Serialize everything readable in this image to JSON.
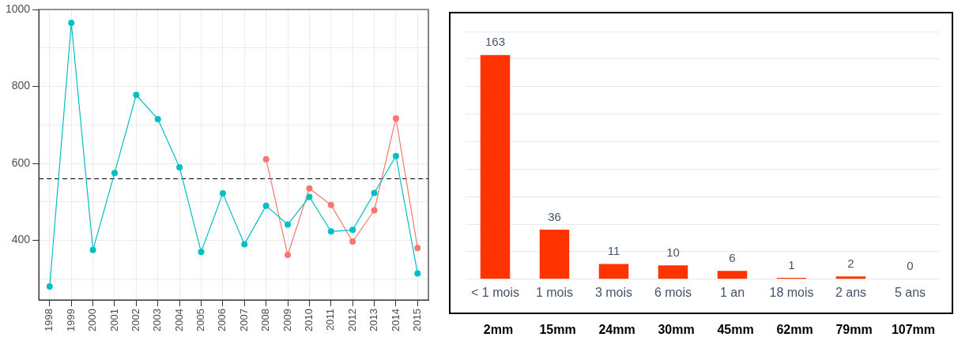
{
  "chart_data": [
    {
      "type": "line",
      "categories": [
        "1998",
        "1999",
        "2000",
        "2001",
        "2002",
        "2003",
        "2004",
        "2005",
        "2006",
        "2007",
        "2008",
        "2009",
        "2010",
        "2011",
        "2012",
        "2013",
        "2014",
        "2015"
      ],
      "series": [
        {
          "color": "#00bfc4",
          "values": [
            280,
            965,
            375,
            575,
            778,
            715,
            590,
            370,
            522,
            390,
            490,
            441,
            513,
            423,
            427,
            523,
            619,
            314
          ]
        },
        {
          "color": "#f8766d",
          "values": [
            null,
            null,
            null,
            null,
            null,
            null,
            null,
            null,
            null,
            null,
            611,
            362,
            535,
            492,
            397,
            478,
            717,
            380
          ]
        }
      ],
      "ylim": [
        245,
        1000
      ],
      "yticks": [
        {
          "value": 300,
          "label": null
        },
        400,
        {
          "value": 500,
          "label": null
        },
        600,
        {
          "value": 700,
          "label": null
        },
        800,
        {
          "value": 900,
          "label": null
        },
        1000
      ],
      "grid": true,
      "marker": "circle",
      "line_style": "solid",
      "legend": false,
      "ref_lines": [
        {
          "axis": "y",
          "value": 560,
          "line_style": "dashed",
          "color": "#000000"
        }
      ]
    },
    {
      "type": "bar",
      "categories": [
        "< 1 mois",
        "1 mois",
        "3 mois",
        "6 mois",
        "1 an",
        "18 mois",
        "2 ans",
        "5 ans"
      ],
      "values": [
        163,
        36,
        11,
        10,
        6,
        1,
        2,
        0
      ],
      "color": "#ff3300",
      "ylim": [
        0,
        180
      ],
      "yticks": [
        {
          "value": 0,
          "label": null
        },
        {
          "value": 20,
          "label": null
        },
        {
          "value": 40,
          "label": null
        },
        {
          "value": 60,
          "label": null
        },
        {
          "value": 80,
          "label": null
        },
        {
          "value": 100,
          "label": null
        },
        {
          "value": 120,
          "label": null
        },
        {
          "value": 140,
          "label": null
        },
        {
          "value": 160,
          "label": null
        },
        {
          "value": 180,
          "label": null
        }
      ],
      "grid": "y",
      "tick_labels": "x",
      "data_labels": true,
      "legend": false,
      "annotations": [
        "2mm",
        "15mm",
        "24mm",
        "30mm",
        "45mm",
        "62mm",
        "79mm",
        "107mm"
      ]
    }
  ]
}
